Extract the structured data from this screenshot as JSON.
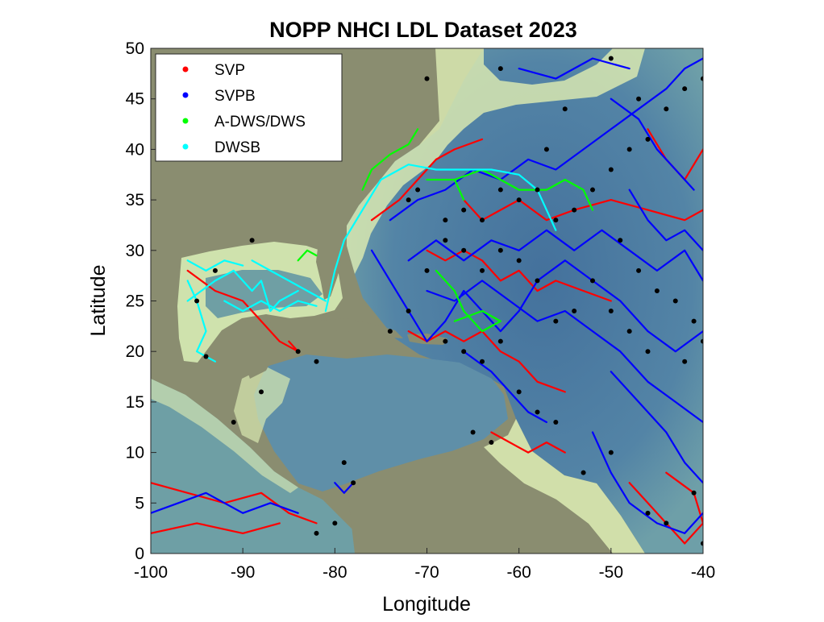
{
  "title": "NOPP NHCI LDL Dataset 2023",
  "xlabel": "Longitude",
  "ylabel": "Latitude",
  "xlim": [
    -100,
    -40
  ],
  "ylim": [
    0,
    50
  ],
  "xticks": [
    -100,
    -90,
    -80,
    -70,
    -60,
    -50,
    -40
  ],
  "yticks": [
    0,
    5,
    10,
    15,
    20,
    25,
    30,
    35,
    40,
    45,
    50
  ],
  "legend": {
    "position": "top-left",
    "entries": [
      {
        "label": "SVP",
        "color": "#ff0000"
      },
      {
        "label": "SVPB",
        "color": "#0000ff"
      },
      {
        "label": "A-DWS/DWS",
        "color": "#00ff00"
      },
      {
        "label": "DWSB",
        "color": "#00ffff"
      }
    ]
  },
  "colors": {
    "land": "#8a8d70",
    "deep_ocean": "#4a7aa2",
    "mid_ocean": "#6b9aa5",
    "shelf": "#d8e8b0",
    "end_marker": "#000000"
  },
  "chart_data": {
    "type": "map",
    "series": [
      {
        "name": "SVP",
        "color": "#ff0000",
        "tracks": [
          [
            [
              -96,
              28
            ],
            [
              -93,
              26
            ],
            [
              -90,
              25
            ],
            [
              -88,
              23
            ],
            [
              -86,
              21
            ],
            [
              -84,
              20
            ],
            [
              -85,
              21
            ]
          ],
          [
            [
              -76,
              33
            ],
            [
              -73,
              35
            ],
            [
              -71,
              37
            ],
            [
              -69,
              39
            ],
            [
              -67,
              40
            ],
            [
              -64,
              41
            ]
          ],
          [
            [
              -70,
              30
            ],
            [
              -68,
              29
            ],
            [
              -66,
              30
            ],
            [
              -64,
              29
            ],
            [
              -62,
              27
            ],
            [
              -60,
              28
            ],
            [
              -58,
              26
            ],
            [
              -56,
              27
            ],
            [
              -53,
              26
            ],
            [
              -50,
              25
            ]
          ],
          [
            [
              -72,
              22
            ],
            [
              -70,
              21
            ],
            [
              -68,
              22
            ],
            [
              -66,
              21
            ],
            [
              -64,
              22
            ],
            [
              -62,
              20
            ],
            [
              -60,
              19
            ],
            [
              -58,
              17
            ],
            [
              -55,
              16
            ]
          ],
          [
            [
              -66,
              35
            ],
            [
              -64,
              33
            ],
            [
              -62,
              34
            ],
            [
              -60,
              35
            ],
            [
              -57,
              33
            ],
            [
              -54,
              34
            ],
            [
              -50,
              35
            ],
            [
              -46,
              34
            ],
            [
              -42,
              33
            ],
            [
              -40,
              34
            ]
          ],
          [
            [
              -63,
              12
            ],
            [
              -61,
              11
            ],
            [
              -59,
              10
            ],
            [
              -57,
              11
            ],
            [
              -55,
              10
            ]
          ],
          [
            [
              -48,
              7
            ],
            [
              -46,
              5
            ],
            [
              -44,
              3
            ],
            [
              -42,
              1
            ],
            [
              -40,
              3
            ],
            [
              -41,
              6
            ],
            [
              -44,
              8
            ]
          ],
          [
            [
              -100,
              7
            ],
            [
              -96,
              6
            ],
            [
              -92,
              5
            ],
            [
              -88,
              6
            ],
            [
              -85,
              4
            ],
            [
              -82,
              3
            ]
          ],
          [
            [
              -100,
              2
            ],
            [
              -95,
              3
            ],
            [
              -90,
              2
            ],
            [
              -86,
              3
            ]
          ],
          [
            [
              -46,
              42
            ],
            [
              -44,
              39
            ],
            [
              -42,
              37
            ],
            [
              -40,
              40
            ]
          ]
        ]
      },
      {
        "name": "SVPB",
        "color": "#0000ff",
        "tracks": [
          [
            [
              -76,
              30
            ],
            [
              -74,
              27
            ],
            [
              -72,
              24
            ],
            [
              -70,
              21
            ],
            [
              -68,
              23
            ],
            [
              -66,
              26
            ],
            [
              -64,
              24
            ],
            [
              -62,
              22
            ],
            [
              -60,
              24
            ],
            [
              -58,
              27
            ],
            [
              -55,
              29
            ],
            [
              -52,
              27
            ],
            [
              -49,
              25
            ],
            [
              -46,
              22
            ],
            [
              -43,
              20
            ],
            [
              -40,
              22
            ]
          ],
          [
            [
              -74,
              33
            ],
            [
              -71,
              35
            ],
            [
              -68,
              36
            ],
            [
              -65,
              38
            ],
            [
              -62,
              37
            ],
            [
              -59,
              39
            ],
            [
              -56,
              38
            ],
            [
              -53,
              40
            ],
            [
              -50,
              42
            ],
            [
              -47,
              44
            ],
            [
              -44,
              46
            ],
            [
              -42,
              48
            ],
            [
              -40,
              49
            ]
          ],
          [
            [
              -72,
              29
            ],
            [
              -69,
              31
            ],
            [
              -66,
              29
            ],
            [
              -63,
              31
            ],
            [
              -60,
              30
            ],
            [
              -57,
              32
            ],
            [
              -54,
              30
            ],
            [
              -51,
              32
            ],
            [
              -48,
              30
            ],
            [
              -45,
              28
            ],
            [
              -42,
              30
            ],
            [
              -40,
              27
            ]
          ],
          [
            [
              -70,
              26
            ],
            [
              -67,
              25
            ],
            [
              -64,
              27
            ],
            [
              -61,
              25
            ],
            [
              -58,
              23
            ],
            [
              -55,
              24
            ],
            [
              -52,
              22
            ],
            [
              -49,
              20
            ],
            [
              -46,
              17
            ],
            [
              -43,
              15
            ],
            [
              -40,
              13
            ]
          ],
          [
            [
              -66,
              20
            ],
            [
              -63,
              18
            ],
            [
              -61,
              16
            ],
            [
              -59,
              14
            ],
            [
              -57,
              13
            ]
          ],
          [
            [
              -50,
              45
            ],
            [
              -47,
              43
            ],
            [
              -45,
              40
            ],
            [
              -43,
              38
            ],
            [
              -41,
              36
            ]
          ],
          [
            [
              -52,
              12
            ],
            [
              -50,
              8
            ],
            [
              -48,
              5
            ],
            [
              -45,
              3
            ],
            [
              -42,
              2
            ],
            [
              -40,
              4
            ]
          ],
          [
            [
              -50,
              18
            ],
            [
              -47,
              15
            ],
            [
              -44,
              12
            ],
            [
              -42,
              9
            ],
            [
              -40,
              7
            ]
          ],
          [
            [
              -100,
              4
            ],
            [
              -97,
              5
            ],
            [
              -94,
              6
            ],
            [
              -90,
              4
            ],
            [
              -87,
              5
            ],
            [
              -84,
              4
            ]
          ],
          [
            [
              -80,
              7
            ],
            [
              -79,
              6
            ],
            [
              -78,
              7
            ]
          ],
          [
            [
              -60,
              48
            ],
            [
              -56,
              47
            ],
            [
              -52,
              49
            ],
            [
              -48,
              48
            ]
          ],
          [
            [
              -48,
              36
            ],
            [
              -46,
              33
            ],
            [
              -44,
              31
            ],
            [
              -42,
              32
            ],
            [
              -40,
              30
            ]
          ]
        ]
      },
      {
        "name": "A-DWS/DWS",
        "color": "#00ff00",
        "tracks": [
          [
            [
              -77,
              36
            ],
            [
              -76,
              38
            ],
            [
              -74,
              39.5
            ],
            [
              -72,
              40.5
            ],
            [
              -71,
              42
            ]
          ],
          [
            [
              -70,
              37
            ],
            [
              -67,
              37
            ],
            [
              -64,
              38
            ],
            [
              -62,
              37
            ],
            [
              -60,
              36
            ],
            [
              -57,
              36
            ],
            [
              -55,
              37
            ],
            [
              -53,
              36
            ],
            [
              -52,
              34
            ]
          ],
          [
            [
              -69,
              28
            ],
            [
              -67,
              26
            ],
            [
              -66,
              24
            ],
            [
              -64,
              22
            ],
            [
              -62,
              23
            ],
            [
              -64,
              24
            ],
            [
              -67,
              23
            ]
          ],
          [
            [
              -84,
              29
            ],
            [
              -83,
              30
            ],
            [
              -82,
              29.5
            ]
          ],
          [
            [
              -67,
              37
            ],
            [
              -66,
              35
            ]
          ]
        ]
      },
      {
        "name": "DWSB",
        "color": "#00ffff",
        "tracks": [
          [
            [
              -81,
              24
            ],
            [
              -80,
              28
            ],
            [
              -79,
              31
            ],
            [
              -77,
              34
            ],
            [
              -75,
              37
            ],
            [
              -72,
              38.5
            ],
            [
              -69,
              38
            ],
            [
              -66,
              38
            ],
            [
              -63,
              38
            ],
            [
              -60,
              37.5
            ],
            [
              -58,
              36
            ],
            [
              -57,
              34
            ],
            [
              -56,
              32
            ]
          ],
          [
            [
              -96,
              25
            ],
            [
              -93,
              27
            ],
            [
              -91,
              28
            ],
            [
              -89,
              26
            ],
            [
              -88,
              27
            ],
            [
              -87,
              24
            ],
            [
              -86,
              25
            ],
            [
              -84,
              26
            ]
          ],
          [
            [
              -96,
              27
            ],
            [
              -95,
              25
            ],
            [
              -94,
              22
            ],
            [
              -95,
              20
            ],
            [
              -93,
              19
            ]
          ],
          [
            [
              -89,
              29
            ],
            [
              -87,
              28
            ],
            [
              -85,
              27
            ],
            [
              -83,
              26
            ],
            [
              -81,
              25
            ]
          ],
          [
            [
              -96,
              29
            ],
            [
              -94,
              28
            ],
            [
              -92,
              29
            ],
            [
              -90,
              28.5
            ]
          ],
          [
            [
              -92,
              25
            ],
            [
              -90,
              24
            ],
            [
              -88,
              25
            ],
            [
              -86,
              24
            ],
            [
              -84,
              25
            ],
            [
              -82,
              24.5
            ]
          ]
        ]
      }
    ],
    "end_markers": [
      [
        -94,
        19.5
      ],
      [
        -95,
        25
      ],
      [
        -89,
        31
      ],
      [
        -93,
        28
      ],
      [
        -84,
        20
      ],
      [
        -82,
        19
      ],
      [
        -88,
        16
      ],
      [
        -91,
        13
      ],
      [
        -79,
        9
      ],
      [
        -78,
        7
      ],
      [
        -80,
        3
      ],
      [
        -82,
        2
      ],
      [
        -72,
        35
      ],
      [
        -71,
        36
      ],
      [
        -68,
        33
      ],
      [
        -66,
        34
      ],
      [
        -64,
        33
      ],
      [
        -62,
        36
      ],
      [
        -60,
        35
      ],
      [
        -58,
        36
      ],
      [
        -56,
        33
      ],
      [
        -54,
        34
      ],
      [
        -52,
        36
      ],
      [
        -50,
        38
      ],
      [
        -48,
        40
      ],
      [
        -46,
        41
      ],
      [
        -44,
        44
      ],
      [
        -42,
        46
      ],
      [
        -40,
        47
      ],
      [
        -49,
        31
      ],
      [
        -47,
        28
      ],
      [
        -45,
        26
      ],
      [
        -43,
        25
      ],
      [
        -41,
        23
      ],
      [
        -40,
        21
      ],
      [
        -42,
        19
      ],
      [
        -46,
        20
      ],
      [
        -48,
        22
      ],
      [
        -50,
        24
      ],
      [
        -52,
        27
      ],
      [
        -54,
        24
      ],
      [
        -56,
        23
      ],
      [
        -58,
        27
      ],
      [
        -60,
        29
      ],
      [
        -62,
        30
      ],
      [
        -64,
        28
      ],
      [
        -66,
        30
      ],
      [
        -68,
        31
      ],
      [
        -70,
        28
      ],
      [
        -72,
        24
      ],
      [
        -74,
        22
      ],
      [
        -68,
        21
      ],
      [
        -66,
        20
      ],
      [
        -64,
        19
      ],
      [
        -62,
        21
      ],
      [
        -60,
        16
      ],
      [
        -58,
        14
      ],
      [
        -56,
        13
      ],
      [
        -50,
        10
      ],
      [
        -53,
        8
      ],
      [
        -46,
        4
      ],
      [
        -44,
        3
      ],
      [
        -41,
        6
      ],
      [
        -40,
        1
      ],
      [
        -65,
        12
      ],
      [
        -63,
        11
      ],
      [
        -57,
        40
      ],
      [
        -55,
        44
      ],
      [
        -50,
        49
      ],
      [
        -47,
        45
      ],
      [
        -70,
        47
      ],
      [
        -62,
        48
      ]
    ]
  }
}
